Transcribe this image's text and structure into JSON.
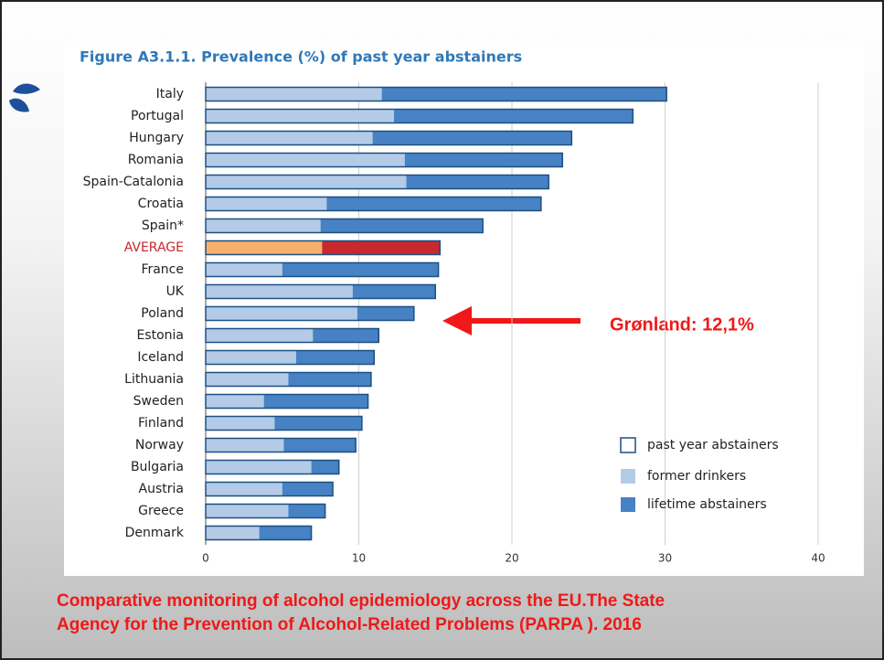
{
  "chart_data": {
    "type": "stacked_barh",
    "title": "Figure A3.1.1. Prevalence (%) of past year abstainers",
    "categories": [
      "Italy",
      "Portugal",
      "Hungary",
      "Romania",
      "Spain-Catalonia",
      "Croatia",
      "Spain*",
      "AVERAGE",
      "France",
      "UK",
      "Poland",
      "Estonia",
      "Iceland",
      "Lithuania",
      "Sweden",
      "Finland",
      "Norway",
      "Bulgaria",
      "Austria",
      "Greece",
      "Denmark"
    ],
    "series": [
      {
        "name": "former drinkers",
        "color": "#b3cbe6",
        "values": [
          11.5,
          12.3,
          10.9,
          13.0,
          13.1,
          7.9,
          7.5,
          7.6,
          5.0,
          9.6,
          9.9,
          7.0,
          5.9,
          5.4,
          3.8,
          4.5,
          5.1,
          6.9,
          5.0,
          5.4,
          3.5
        ]
      },
      {
        "name": "lifetime abstainers",
        "color": "#4682c4",
        "values": [
          18.6,
          15.6,
          13.0,
          10.3,
          9.3,
          14.0,
          10.6,
          7.7,
          10.2,
          5.4,
          3.7,
          4.3,
          5.1,
          5.4,
          6.8,
          5.7,
          4.7,
          1.8,
          3.3,
          2.4,
          3.4
        ]
      }
    ],
    "outline": {
      "name": "past year abstainers",
      "color": "#1d4f82"
    },
    "highlight": {
      "category": 7,
      "colors": [
        "#f5b06b",
        "#c8282e"
      ],
      "label_color": "#c8282e"
    },
    "xlim": [
      0,
      40
    ],
    "xticks": [
      0,
      10,
      20,
      30,
      40
    ],
    "grid": true,
    "legend": "lower right",
    "annotation": "Grønland: 12,1%",
    "source": [
      "Comparative monitoring of alcohol epidemiology across the EU.The State",
      "Agency for the Prevention of Alcohol-Related Problems (PARPA ). 2016"
    ]
  }
}
